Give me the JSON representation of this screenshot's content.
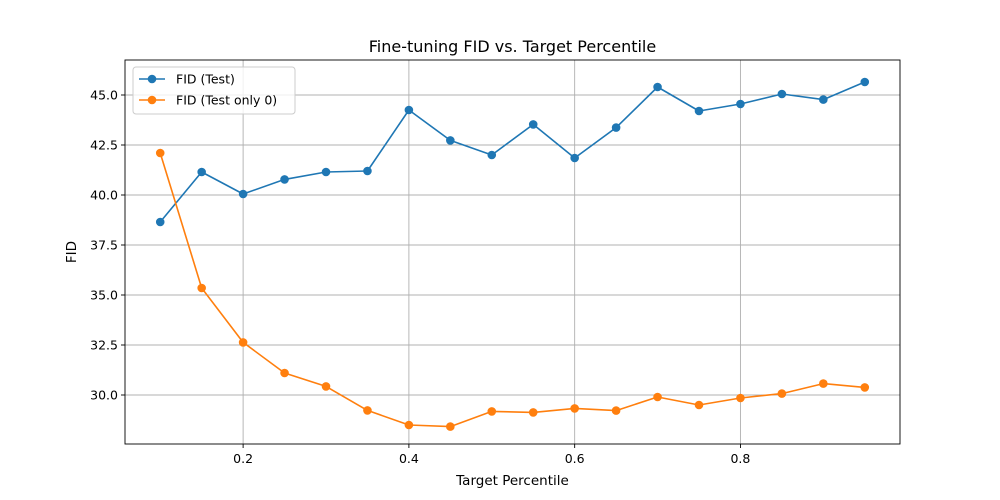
{
  "chart_data": {
    "type": "line",
    "title": "Fine-tuning FID vs. Target Percentile",
    "xlabel": "Target Percentile",
    "ylabel": "FID",
    "xlim": [
      0.0575,
      0.9925
    ],
    "ylim": [
      27.55,
      46.75
    ],
    "grid": true,
    "legend_position": "top-left",
    "x_ticks": [
      0.2,
      0.4,
      0.6,
      0.8
    ],
    "x_tick_labels": [
      "0.2",
      "0.4",
      "0.6",
      "0.8"
    ],
    "y_ticks": [
      30.0,
      32.5,
      35.0,
      37.5,
      40.0,
      42.5,
      45.0
    ],
    "y_tick_labels": [
      "30.0",
      "32.5",
      "35.0",
      "37.5",
      "40.0",
      "42.5",
      "45.0"
    ],
    "x": [
      0.1,
      0.15,
      0.2,
      0.25,
      0.3,
      0.35,
      0.4,
      0.45,
      0.5,
      0.55,
      0.6,
      0.65,
      0.7,
      0.75,
      0.8,
      0.85,
      0.9,
      0.95
    ],
    "series": [
      {
        "name": "FID (Test)",
        "color": "#1f77b4",
        "values": [
          38.65,
          41.15,
          40.05,
          40.78,
          41.15,
          41.2,
          44.25,
          42.73,
          42.0,
          43.53,
          41.85,
          43.37,
          45.4,
          44.2,
          44.55,
          45.05,
          44.77,
          45.65
        ]
      },
      {
        "name": "FID (Test only 0)",
        "color": "#ff7f0e",
        "values": [
          42.1,
          35.35,
          32.63,
          31.1,
          30.43,
          29.23,
          28.5,
          28.42,
          29.18,
          29.13,
          29.33,
          29.22,
          29.9,
          29.5,
          29.85,
          30.07,
          30.57,
          30.38
        ]
      }
    ]
  }
}
